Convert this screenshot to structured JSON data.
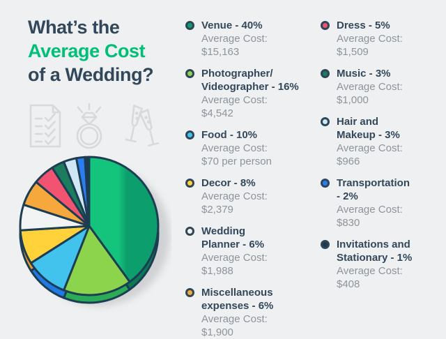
{
  "page": {
    "background": "#eff0f1"
  },
  "title": {
    "line1": "What’s the",
    "line2": "Average Cost",
    "line3": "of a Wedding?"
  },
  "colors": {
    "navy_text": "#33475b",
    "accent_green": "#00c077",
    "gray_text": "#8d949b",
    "icon_gray": "#d7dadc",
    "pie_outline": "#1d3d53",
    "background": "#eff0f1",
    "shadow": "#c2c5c8"
  },
  "icons": [
    {
      "name": "checklist-icon"
    },
    {
      "name": "wedding-ring-icon"
    },
    {
      "name": "champagne-glasses-icon"
    }
  ],
  "legend": {
    "cost_label": "Average Cost:",
    "columns": [
      [
        0,
        1,
        2,
        3,
        4,
        5
      ],
      [
        6,
        7,
        8,
        9,
        10
      ]
    ]
  },
  "chart_data": {
    "type": "pie",
    "title": "What’s the Average Cost of a Wedding?",
    "direction": "clockwise",
    "start_angle_deg": 0,
    "legend_position": "right",
    "slices": [
      {
        "label": "Venue",
        "legend_label": "Venue - 40%",
        "percent": 40,
        "cost": "$15,163",
        "color": "#15c47c",
        "color2": "#0d9e6d",
        "side_color": "#0a7a52"
      },
      {
        "label": "Photographer/Videographer",
        "legend_label": "Photographer/\nVideographer - 16%",
        "percent": 16,
        "cost": "$4,542",
        "color": "#8dd44d",
        "side_color": "#2aab55"
      },
      {
        "label": "Food",
        "legend_label": "Food - 10%",
        "percent": 10,
        "cost": "$70 per person",
        "color": "#41c3ee",
        "side_color": "#2179e6"
      },
      {
        "label": "Decor",
        "legend_label": "Decor - 8%",
        "percent": 8,
        "cost": "$2,379",
        "color": "#ffd23b",
        "side_color": "#f29b2d"
      },
      {
        "label": "Wedding Planner",
        "legend_label": "Wedding\nPlanner - 6%",
        "percent": 6,
        "cost": "$1,988",
        "color": "#f2f3f3",
        "side_color": "#d9dadb"
      },
      {
        "label": "Miscellaneous expenses",
        "legend_label": "Miscellaneous\nexpenses - 6%",
        "percent": 6,
        "cost": "$1,900",
        "color": "#f6a83c",
        "side_color": "#d88a28"
      },
      {
        "label": "Dress",
        "legend_label": "Dress - 5%",
        "percent": 5,
        "cost": "$1,509",
        "color": "#f25371",
        "side_color": "#d03a57"
      },
      {
        "label": "Music",
        "legend_label": "Music - 3%",
        "percent": 3,
        "cost": "$1,000",
        "color": "#1b7d5d",
        "side_color": "#115c43"
      },
      {
        "label": "Hair and Makeup",
        "legend_label": "Hair and\nMakeup - 3%",
        "percent": 3,
        "cost": "$966",
        "color": "#cfe8f4",
        "side_color": "#a9cfe3"
      },
      {
        "label": "Transportation",
        "legend_label": "Transportation\n- 2%",
        "percent": 2,
        "cost": "$830",
        "color": "#2c7ef0",
        "side_color": "#1b5fc4"
      },
      {
        "label": "Invitations and Stationary",
        "legend_label": "Invitations and\nStationary - 1%",
        "percent": 1,
        "cost": "$408",
        "color": "#1c3a50",
        "side_color": "#12293a"
      }
    ]
  }
}
